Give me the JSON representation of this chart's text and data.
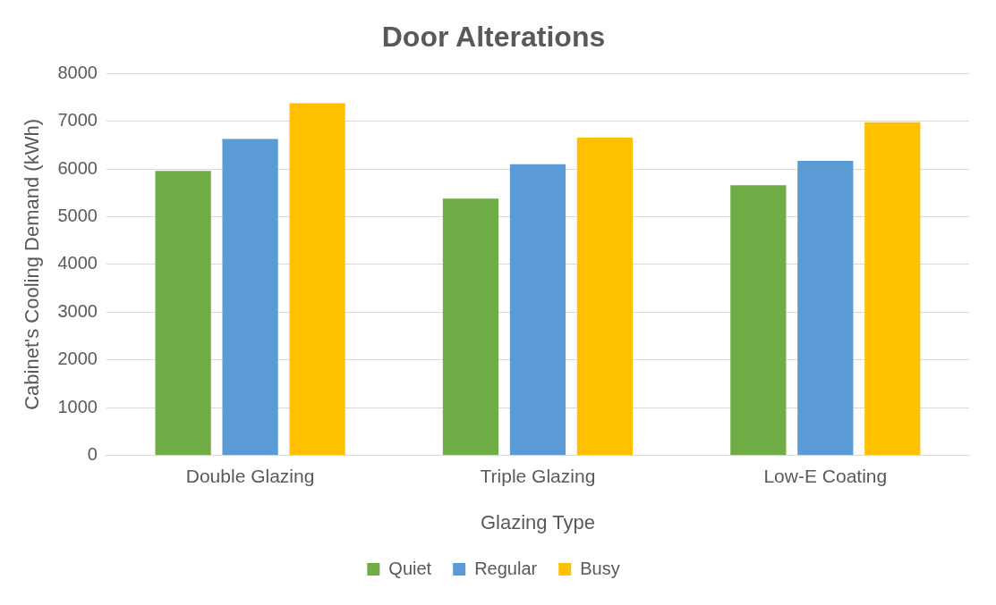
{
  "chart_data": {
    "type": "bar",
    "title": "Door Alterations",
    "xlabel": "Glazing Type",
    "ylabel": "Cabinet's Cooling Demand (kWh)",
    "categories": [
      "Double Glazing",
      "Triple Glazing",
      "Low-E Coating"
    ],
    "series": [
      {
        "name": "Quiet",
        "color": "#70ad47",
        "values": [
          5960,
          5380,
          5660
        ]
      },
      {
        "name": "Regular",
        "color": "#5b9bd5",
        "values": [
          6630,
          6100,
          6170
        ]
      },
      {
        "name": "Busy",
        "color": "#ffc000",
        "values": [
          7380,
          6660,
          6980
        ]
      }
    ],
    "ylim": [
      0,
      8000
    ],
    "yticks": [
      0,
      1000,
      2000,
      3000,
      4000,
      5000,
      6000,
      7000,
      8000
    ],
    "grid": "y",
    "legend": "bottom"
  }
}
